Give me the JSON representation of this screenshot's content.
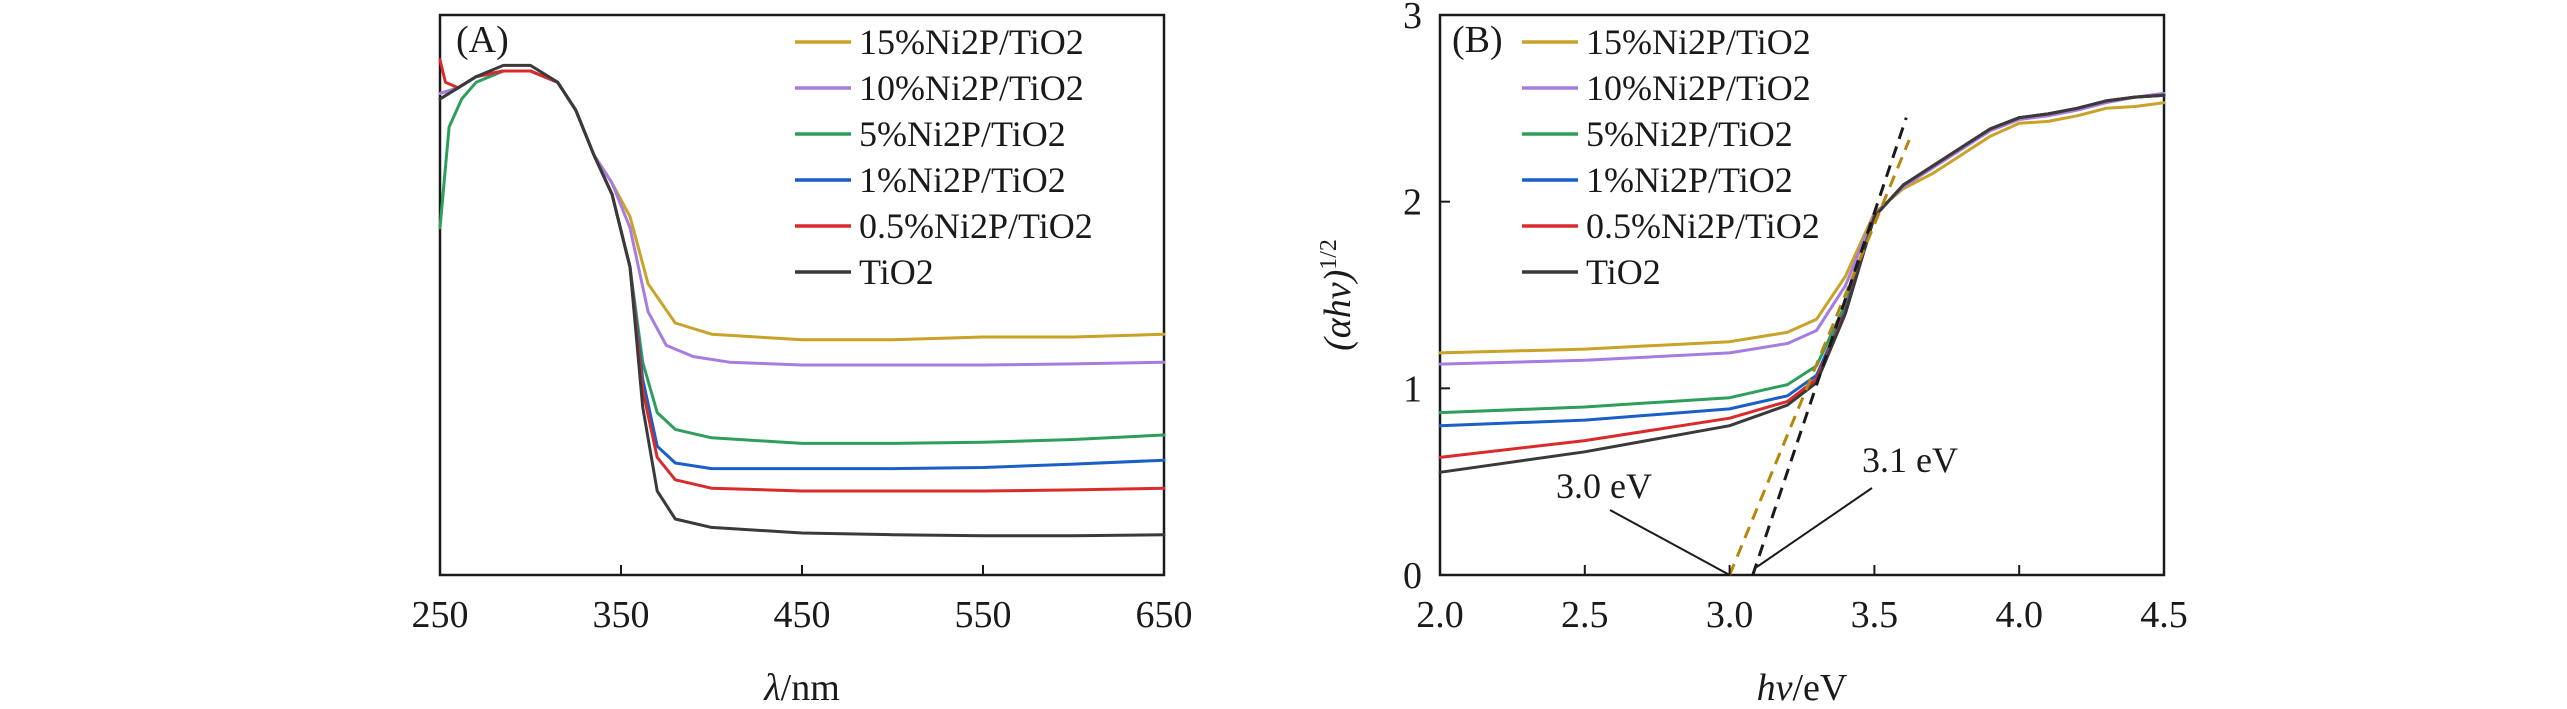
{
  "chart_data": [
    {
      "panel": "A",
      "type": "line",
      "panel_label": "(A)",
      "xlabel_var": "λ",
      "xlabel_unit": "/nm",
      "ylabel": "",
      "xlim": [
        250,
        650
      ],
      "ylim": [
        0,
        1
      ],
      "xticks": [
        250,
        350,
        450,
        550,
        650
      ],
      "xtick_labels": [
        "250",
        "350",
        "450",
        "550",
        "650"
      ],
      "legend_position": "top-right",
      "series": [
        {
          "name": "15%Ni2P/TiO2",
          "pct": "15%",
          "color": "#c9a227",
          "x": [
            250,
            260,
            270,
            285,
            300,
            315,
            325,
            335,
            345,
            355,
            365,
            380,
            400,
            450,
            500,
            550,
            600,
            650
          ],
          "y": [
            0.86,
            0.87,
            0.89,
            0.9,
            0.9,
            0.88,
            0.83,
            0.75,
            0.7,
            0.64,
            0.52,
            0.45,
            0.43,
            0.42,
            0.42,
            0.425,
            0.425,
            0.43
          ]
        },
        {
          "name": "10%Ni2P/TiO2",
          "pct": "10%",
          "color": "#a57de0",
          "x": [
            250,
            260,
            270,
            285,
            300,
            315,
            325,
            335,
            345,
            355,
            365,
            375,
            390,
            410,
            450,
            500,
            550,
            600,
            650
          ],
          "y": [
            0.86,
            0.87,
            0.89,
            0.9,
            0.9,
            0.88,
            0.83,
            0.75,
            0.7,
            0.62,
            0.47,
            0.41,
            0.39,
            0.38,
            0.375,
            0.375,
            0.375,
            0.377,
            0.38
          ]
        },
        {
          "name": "5%Ni2P/TiO2",
          "pct": "5%",
          "color": "#2e9e5b",
          "x": [
            250,
            255,
            262,
            270,
            285,
            300,
            315,
            325,
            335,
            345,
            355,
            362,
            370,
            380,
            400,
            450,
            500,
            550,
            600,
            650
          ],
          "y": [
            0.62,
            0.8,
            0.85,
            0.88,
            0.9,
            0.9,
            0.88,
            0.83,
            0.75,
            0.68,
            0.55,
            0.38,
            0.29,
            0.26,
            0.245,
            0.235,
            0.235,
            0.237,
            0.242,
            0.25
          ]
        },
        {
          "name": "1%Ni2P/TiO2",
          "pct": "1%",
          "color": "#1a5fc8",
          "x": [
            250,
            260,
            270,
            285,
            300,
            315,
            325,
            335,
            345,
            355,
            362,
            370,
            380,
            400,
            450,
            500,
            550,
            600,
            650
          ],
          "y": [
            0.85,
            0.87,
            0.89,
            0.9,
            0.9,
            0.88,
            0.83,
            0.75,
            0.68,
            0.55,
            0.35,
            0.23,
            0.2,
            0.19,
            0.19,
            0.19,
            0.192,
            0.198,
            0.205
          ]
        },
        {
          "name": "0.5%Ni2P/TiO2",
          "pct": "0.5%",
          "color": "#d92b2b",
          "x": [
            250,
            253,
            260,
            270,
            285,
            300,
            315,
            325,
            335,
            345,
            355,
            362,
            370,
            380,
            400,
            450,
            500,
            550,
            600,
            650
          ],
          "y": [
            0.92,
            0.88,
            0.87,
            0.89,
            0.9,
            0.9,
            0.88,
            0.83,
            0.75,
            0.68,
            0.55,
            0.33,
            0.21,
            0.17,
            0.155,
            0.15,
            0.15,
            0.15,
            0.152,
            0.155
          ]
        },
        {
          "name": "TiO2",
          "pct": "",
          "color": "#3a3a3a",
          "x": [
            250,
            260,
            270,
            285,
            300,
            315,
            325,
            335,
            345,
            355,
            362,
            370,
            380,
            400,
            450,
            500,
            550,
            600,
            650
          ],
          "y": [
            0.85,
            0.87,
            0.89,
            0.91,
            0.91,
            0.88,
            0.83,
            0.75,
            0.68,
            0.55,
            0.3,
            0.15,
            0.1,
            0.085,
            0.075,
            0.072,
            0.07,
            0.07,
            0.072
          ]
        }
      ]
    },
    {
      "panel": "B",
      "type": "line",
      "panel_label": "(B)",
      "xlabel_var": "hv",
      "xlabel_unit": "/eV",
      "ylabel_main": "(αhv)",
      "ylabel_sup": "1/2",
      "xlim": [
        2.0,
        4.5
      ],
      "ylim": [
        0,
        3
      ],
      "xticks": [
        2.0,
        2.5,
        3.0,
        3.5,
        4.0,
        4.5
      ],
      "xtick_labels": [
        "2.0",
        "2.5",
        "3.0",
        "3.5",
        "4.0",
        "4.5"
      ],
      "yticks": [
        0,
        1,
        2,
        3
      ],
      "ytick_labels": [
        "0",
        "1",
        "2",
        "3"
      ],
      "legend_position": "top-left",
      "series": [
        {
          "name": "15%Ni2P/TiO2",
          "pct": "15%",
          "color": "#c9a227",
          "x": [
            2.0,
            2.5,
            3.0,
            3.2,
            3.3,
            3.4,
            3.5,
            3.6,
            3.7,
            3.8,
            3.9,
            4.0,
            4.1,
            4.2,
            4.3,
            4.4,
            4.5
          ],
          "y": [
            1.19,
            1.21,
            1.25,
            1.3,
            1.37,
            1.6,
            1.94,
            2.07,
            2.15,
            2.25,
            2.35,
            2.42,
            2.43,
            2.46,
            2.5,
            2.51,
            2.53
          ]
        },
        {
          "name": "10%Ni2P/TiO2",
          "pct": "10%",
          "color": "#a57de0",
          "x": [
            2.0,
            2.5,
            3.0,
            3.2,
            3.3,
            3.4,
            3.5,
            3.6,
            3.7,
            3.8,
            3.9,
            4.0,
            4.1,
            4.2,
            4.3,
            4.4,
            4.5
          ],
          "y": [
            1.13,
            1.15,
            1.19,
            1.24,
            1.31,
            1.55,
            1.93,
            2.08,
            2.18,
            2.28,
            2.38,
            2.44,
            2.46,
            2.49,
            2.53,
            2.56,
            2.58
          ]
        },
        {
          "name": "5%Ni2P/TiO2",
          "pct": "5%",
          "color": "#2e9e5b",
          "x": [
            2.0,
            2.5,
            3.0,
            3.2,
            3.3,
            3.4,
            3.5,
            3.6,
            3.7,
            3.8,
            3.9,
            4.0,
            4.1,
            4.2,
            4.3,
            4.4,
            4.5
          ],
          "y": [
            0.87,
            0.9,
            0.95,
            1.02,
            1.12,
            1.45,
            1.92,
            2.09,
            2.19,
            2.29,
            2.39,
            2.45,
            2.47,
            2.5,
            2.54,
            2.56,
            2.57
          ]
        },
        {
          "name": "1%Ni2P/TiO2",
          "pct": "1%",
          "color": "#1a5fc8",
          "x": [
            2.0,
            2.5,
            3.0,
            3.2,
            3.3,
            3.4,
            3.5,
            3.6,
            3.7,
            3.8,
            3.9,
            4.0,
            4.1,
            4.2,
            4.3,
            4.4,
            4.5
          ],
          "y": [
            0.8,
            0.83,
            0.89,
            0.96,
            1.07,
            1.42,
            1.92,
            2.09,
            2.19,
            2.29,
            2.39,
            2.45,
            2.47,
            2.5,
            2.54,
            2.56,
            2.57
          ]
        },
        {
          "name": "0.5%Ni2P/TiO2",
          "pct": "0.5%",
          "color": "#d92b2b",
          "x": [
            2.0,
            2.5,
            3.0,
            3.2,
            3.3,
            3.4,
            3.5,
            3.6,
            3.7,
            3.8,
            3.9,
            4.0,
            4.1,
            4.2,
            4.3,
            4.4,
            4.5
          ],
          "y": [
            0.63,
            0.72,
            0.84,
            0.93,
            1.05,
            1.41,
            1.92,
            2.09,
            2.19,
            2.29,
            2.39,
            2.45,
            2.47,
            2.5,
            2.54,
            2.56,
            2.57
          ]
        },
        {
          "name": "TiO2",
          "pct": "",
          "color": "#3a3a3a",
          "x": [
            2.0,
            2.5,
            3.0,
            3.2,
            3.3,
            3.4,
            3.5,
            3.6,
            3.7,
            3.8,
            3.9,
            4.0,
            4.1,
            4.2,
            4.3,
            4.4,
            4.5
          ],
          "y": [
            0.55,
            0.66,
            0.8,
            0.91,
            1.03,
            1.4,
            1.92,
            2.09,
            2.19,
            2.29,
            2.39,
            2.45,
            2.47,
            2.5,
            2.54,
            2.56,
            2.57
          ]
        }
      ],
      "tangent_lines": [
        {
          "name": "tangent-3.0",
          "color": "#b8860b",
          "x": [
            3.0,
            3.62
          ],
          "y": [
            0,
            2.33
          ]
        },
        {
          "name": "tangent-3.1",
          "color": "#1a1a1a",
          "x": [
            3.08,
            3.61
          ],
          "y": [
            0,
            2.45
          ]
        }
      ],
      "annotations": [
        {
          "label": "3.0 eV",
          "points_to": [
            3.0,
            0
          ]
        },
        {
          "label": "3.1 eV",
          "points_to": [
            3.08,
            0
          ]
        }
      ]
    }
  ]
}
